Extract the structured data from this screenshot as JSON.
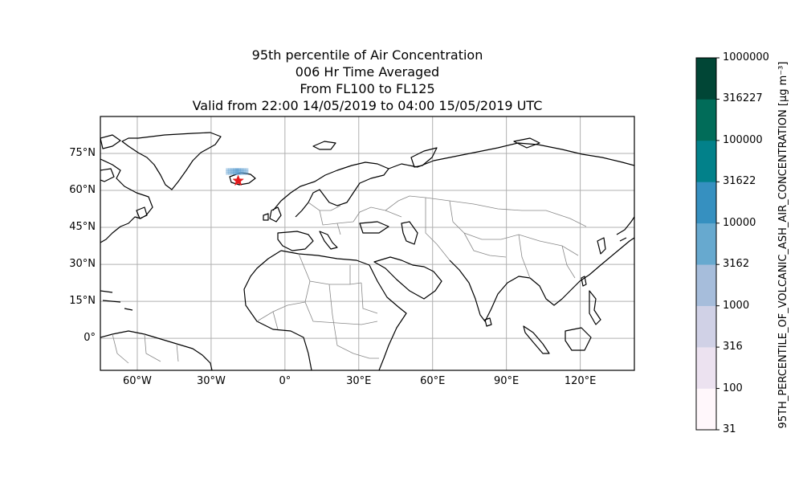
{
  "title": {
    "line1": "95th percentile of Air Concentration",
    "line2": "006 Hr Time Averaged",
    "line3": "From FL100 to FL125",
    "line4": "Valid from 22:00 14/05/2019 to 04:00 15/05/2019 UTC"
  },
  "map": {
    "projection": "PlateCarree",
    "lon_range": [
      -75,
      142
    ],
    "lat_range": [
      -13,
      90
    ],
    "gridlines": true,
    "lat_ticks": [
      {
        "value": 75,
        "label": "75°N"
      },
      {
        "value": 60,
        "label": "60°N"
      },
      {
        "value": 45,
        "label": "45°N"
      },
      {
        "value": 30,
        "label": "30°N"
      },
      {
        "value": 15,
        "label": "15°N"
      },
      {
        "value": 0,
        "label": "0°"
      }
    ],
    "lon_ticks": [
      {
        "value": -60,
        "label": "60°W"
      },
      {
        "value": -30,
        "label": "30°W"
      },
      {
        "value": 0,
        "label": "0°"
      },
      {
        "value": 30,
        "label": "30°E"
      },
      {
        "value": 60,
        "label": "60°E"
      },
      {
        "value": 90,
        "label": "90°E"
      },
      {
        "value": 120,
        "label": "120°E"
      }
    ],
    "source_marker": {
      "lon": -19.0,
      "lat": 63.9,
      "symbol": "red-star",
      "color": "#e41a1c"
    },
    "ash_plume": {
      "lon_range": [
        -24,
        -15
      ],
      "lat_range": [
        66.5,
        69.0
      ],
      "color": "#5a9ccf"
    }
  },
  "colorbar": {
    "title": "95TH_PERCENTILE_OF_VOLCANIC_ASH_AIR_CONCENTRATION",
    "units": "[μg m⁻³]",
    "levels": [
      "31",
      "100",
      "316",
      "1000",
      "3162",
      "10000",
      "31622",
      "100000",
      "316227",
      "1000000"
    ],
    "colors": [
      "#fff7fb",
      "#ece2f0",
      "#d0d1e6",
      "#a6bddb",
      "#67a9cf",
      "#3690c0",
      "#02818a",
      "#016c59",
      "#014636"
    ]
  }
}
